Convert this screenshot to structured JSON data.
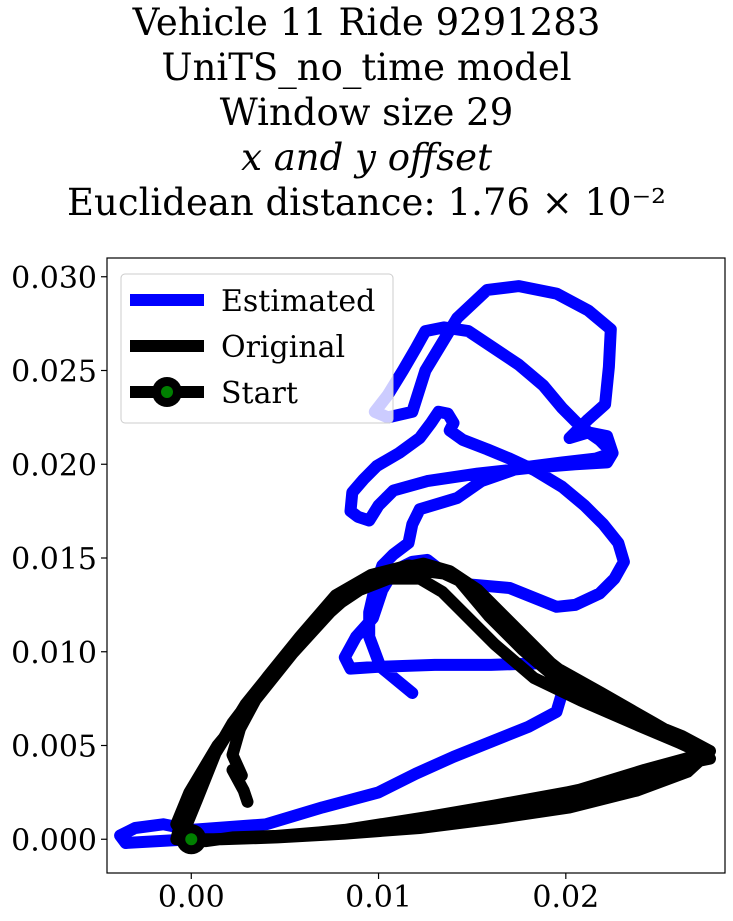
{
  "chart_data": {
    "type": "line",
    "title_lines": [
      "Vehicle 11 Ride 9291283",
      "UniTS_no_time model",
      "Window size 29",
      "x and y offset",
      "Euclidean distance: 1.76 × 10⁻²"
    ],
    "xlabel": "",
    "ylabel": "",
    "xlim": [
      -0.0045,
      0.0285
    ],
    "ylim": [
      -0.0018,
      0.031
    ],
    "xticks": [
      0.0,
      0.01,
      0.02
    ],
    "xtick_labels": [
      "0.00",
      "0.01",
      "0.02"
    ],
    "yticks": [
      0.0,
      0.005,
      0.01,
      0.015,
      0.02,
      0.025,
      0.03
    ],
    "ytick_labels": [
      "0.000",
      "0.005",
      "0.010",
      "0.015",
      "0.020",
      "0.025",
      "0.030"
    ],
    "grid": false,
    "legend": {
      "placement": "top-left",
      "entries": [
        "Estimated",
        "Original",
        "Start"
      ]
    },
    "series": [
      {
        "name": "Estimated",
        "color": "#0000ff",
        "points": [
          [
            0.0,
            0.0
          ],
          [
            -0.0035,
            -0.0002
          ],
          [
            -0.0038,
            0.0002
          ],
          [
            -0.003,
            0.0006
          ],
          [
            -0.0015,
            0.0008
          ],
          [
            0.0,
            0.0005
          ],
          [
            0.004,
            0.0008
          ],
          [
            0.007,
            0.0017
          ],
          [
            0.01,
            0.0025
          ],
          [
            0.012,
            0.0035
          ],
          [
            0.014,
            0.0044
          ],
          [
            0.016,
            0.0052
          ],
          [
            0.018,
            0.006
          ],
          [
            0.0195,
            0.0068
          ],
          [
            0.0198,
            0.0078
          ],
          [
            0.0197,
            0.0089
          ],
          [
            0.019,
            0.0094
          ],
          [
            0.016,
            0.0093
          ],
          [
            0.013,
            0.0093
          ],
          [
            0.01,
            0.0092
          ],
          [
            0.0085,
            0.0091
          ],
          [
            0.0082,
            0.0097
          ],
          [
            0.0088,
            0.0108
          ],
          [
            0.0097,
            0.0118
          ],
          [
            0.0102,
            0.0133
          ],
          [
            0.0108,
            0.0143
          ],
          [
            0.0118,
            0.0148
          ],
          [
            0.0126,
            0.0149
          ],
          [
            0.0135,
            0.0142
          ],
          [
            0.0148,
            0.0136
          ],
          [
            0.017,
            0.0134
          ],
          [
            0.0195,
            0.0124
          ],
          [
            0.0205,
            0.0125
          ],
          [
            0.0218,
            0.0131
          ],
          [
            0.0226,
            0.0139
          ],
          [
            0.0231,
            0.0148
          ],
          [
            0.0228,
            0.0158
          ],
          [
            0.022,
            0.0168
          ],
          [
            0.021,
            0.0178
          ],
          [
            0.0198,
            0.0188
          ],
          [
            0.0183,
            0.0197
          ],
          [
            0.017,
            0.0203
          ],
          [
            0.0158,
            0.0208
          ],
          [
            0.0145,
            0.0213
          ],
          [
            0.0138,
            0.0218
          ],
          [
            0.014,
            0.0222
          ],
          [
            0.0137,
            0.0227
          ],
          [
            0.0132,
            0.0228
          ],
          [
            0.0128,
            0.0222
          ],
          [
            0.0122,
            0.0214
          ],
          [
            0.0111,
            0.0206
          ],
          [
            0.0099,
            0.0199
          ],
          [
            0.0092,
            0.0192
          ],
          [
            0.0086,
            0.0185
          ],
          [
            0.0085,
            0.0175
          ],
          [
            0.0089,
            0.0172
          ],
          [
            0.0095,
            0.017
          ],
          [
            0.01,
            0.0178
          ],
          [
            0.0108,
            0.0186
          ],
          [
            0.0126,
            0.0191
          ],
          [
            0.0153,
            0.0195
          ],
          [
            0.018,
            0.0198
          ],
          [
            0.0205,
            0.02
          ],
          [
            0.0222,
            0.0201
          ],
          [
            0.0225,
            0.0206
          ],
          [
            0.0218,
            0.0213
          ],
          [
            0.0208,
            0.022
          ],
          [
            0.0198,
            0.023
          ],
          [
            0.0188,
            0.0242
          ],
          [
            0.0175,
            0.0253
          ],
          [
            0.016,
            0.0263
          ],
          [
            0.0148,
            0.0271
          ],
          [
            0.0135,
            0.0273
          ],
          [
            0.0125,
            0.0271
          ],
          [
            0.012,
            0.0262
          ],
          [
            0.0113,
            0.025
          ],
          [
            0.0105,
            0.0237
          ],
          [
            0.0098,
            0.0228
          ],
          [
            0.0105,
            0.0225
          ],
          [
            0.0118,
            0.0228
          ],
          [
            0.0125,
            0.025
          ],
          [
            0.0142,
            0.0278
          ],
          [
            0.0158,
            0.0293
          ],
          [
            0.0175,
            0.0295
          ],
          [
            0.0195,
            0.0291
          ],
          [
            0.0212,
            0.0282
          ],
          [
            0.0224,
            0.0272
          ],
          [
            0.0223,
            0.0252
          ],
          [
            0.0221,
            0.0232
          ],
          [
            0.0212,
            0.0224
          ],
          [
            0.0202,
            0.0214
          ],
          [
            0.0212,
            0.0217
          ],
          [
            0.0222,
            0.0215
          ],
          [
            0.0225,
            0.0206
          ],
          [
            0.0216,
            0.0203
          ],
          [
            0.0198,
            0.0201
          ],
          [
            0.0175,
            0.0198
          ],
          [
            0.0155,
            0.0191
          ],
          [
            0.0142,
            0.0182
          ],
          [
            0.0122,
            0.0176
          ],
          [
            0.0118,
            0.0168
          ],
          [
            0.0116,
            0.0158
          ],
          [
            0.0108,
            0.0152
          ],
          [
            0.0102,
            0.0146
          ],
          [
            0.0098,
            0.0134
          ],
          [
            0.0095,
            0.0121
          ],
          [
            0.0095,
            0.0108
          ],
          [
            0.0101,
            0.0092
          ],
          [
            0.0118,
            0.0078
          ]
        ]
      },
      {
        "name": "Original",
        "color": "#000000",
        "points": [
          [
            0.003,
            0.002
          ],
          [
            0.0028,
            0.0026
          ],
          [
            0.0022,
            0.0037
          ],
          [
            0.0027,
            0.0034
          ],
          [
            0.0022,
            0.0045
          ],
          [
            0.0026,
            0.0059
          ],
          [
            0.004,
            0.0085
          ],
          [
            0.0062,
            0.011
          ],
          [
            0.0084,
            0.0134
          ],
          [
            0.0103,
            0.0139
          ],
          [
            0.0122,
            0.0139
          ],
          [
            0.0134,
            0.0132
          ],
          [
            0.0143,
            0.0123
          ],
          [
            0.0162,
            0.0104
          ],
          [
            0.0183,
            0.0086
          ],
          [
            0.0208,
            0.0074
          ],
          [
            0.0238,
            0.0061
          ],
          [
            0.0264,
            0.005
          ],
          [
            0.0274,
            0.0046
          ],
          [
            0.0264,
            0.0043
          ],
          [
            0.0242,
            0.0037
          ],
          [
            0.0206,
            0.0026
          ],
          [
            0.0162,
            0.0018
          ],
          [
            0.0127,
            0.0012
          ],
          [
            0.0082,
            0.0005
          ],
          [
            0.0052,
            0.0002
          ],
          [
            0.0022,
            0.0001
          ],
          [
            0.0008,
            -0.0001
          ],
          [
            0.0001,
            -0.0001
          ],
          [
            -0.0008,
            0.0
          ],
          [
            -0.0004,
            0.0016
          ],
          [
            0.0008,
            0.0038
          ],
          [
            0.0022,
            0.0062
          ],
          [
            0.0041,
            0.0087
          ],
          [
            0.0058,
            0.0108
          ],
          [
            0.0077,
            0.013
          ],
          [
            0.0096,
            0.0141
          ],
          [
            0.0116,
            0.0146
          ],
          [
            0.013,
            0.0144
          ],
          [
            0.0143,
            0.0138
          ],
          [
            0.0159,
            0.0119
          ],
          [
            0.0177,
            0.0101
          ],
          [
            0.0196,
            0.0085
          ],
          [
            0.0218,
            0.0073
          ],
          [
            0.0242,
            0.006
          ],
          [
            0.0266,
            0.0049
          ],
          [
            0.0277,
            0.0043
          ],
          [
            0.0262,
            0.004
          ],
          [
            0.0229,
            0.0031
          ],
          [
            0.0196,
            0.0024
          ],
          [
            0.0162,
            0.0016
          ],
          [
            0.0122,
            0.001
          ],
          [
            0.0082,
            0.0004
          ],
          [
            0.0046,
            0.0001
          ],
          [
            0.0016,
            0.0
          ],
          [
            0.0001,
            0.0
          ],
          [
            -0.0004,
            0.0004
          ],
          [
            0.0003,
            0.0021
          ],
          [
            0.0013,
            0.0046
          ],
          [
            0.0029,
            0.0072
          ],
          [
            0.005,
            0.0098
          ],
          [
            0.0072,
            0.0121
          ],
          [
            0.009,
            0.0133
          ],
          [
            0.0108,
            0.014
          ],
          [
            0.0124,
            0.0143
          ],
          [
            0.0141,
            0.0141
          ],
          [
            0.0157,
            0.0128
          ],
          [
            0.0174,
            0.011
          ],
          [
            0.0194,
            0.0092
          ],
          [
            0.0219,
            0.0078
          ],
          [
            0.0247,
            0.0062
          ],
          [
            0.0266,
            0.0051
          ],
          [
            0.0276,
            0.0044
          ],
          [
            0.0262,
            0.0037
          ],
          [
            0.0232,
            0.0028
          ],
          [
            0.0196,
            0.0021
          ],
          [
            0.0162,
            0.0013
          ],
          [
            0.0115,
            0.0008
          ],
          [
            0.0072,
            0.0004
          ],
          [
            0.0036,
            0.0001
          ],
          [
            0.0012,
            0.0
          ],
          [
            -0.0002,
            0.0
          ],
          [
            -0.0008,
            0.0008
          ],
          [
            -0.0001,
            0.0025
          ],
          [
            0.0014,
            0.005
          ],
          [
            0.0034,
            0.0074
          ],
          [
            0.0054,
            0.0099
          ],
          [
            0.0074,
            0.0121
          ],
          [
            0.0092,
            0.0137
          ],
          [
            0.011,
            0.0144
          ],
          [
            0.0124,
            0.0147
          ],
          [
            0.0138,
            0.0143
          ],
          [
            0.0153,
            0.0133
          ],
          [
            0.0172,
            0.0114
          ],
          [
            0.0192,
            0.0094
          ],
          [
            0.0215,
            0.0076
          ],
          [
            0.0242,
            0.0063
          ],
          [
            0.0262,
            0.0055
          ],
          [
            0.0277,
            0.0047
          ],
          [
            0.0265,
            0.0036
          ],
          [
            0.0238,
            0.0026
          ],
          [
            0.0202,
            0.0017
          ],
          [
            0.0162,
            0.0011
          ],
          [
            0.0122,
            0.0006
          ],
          [
            0.0082,
            0.0003
          ],
          [
            0.0046,
            0.0001
          ],
          [
            0.0016,
            0.0
          ],
          [
            0.0001,
            0.0
          ],
          [
            0.0,
            0.0
          ]
        ]
      }
    ],
    "start_point": {
      "name": "Start",
      "x": 0.0,
      "y": 0.0,
      "outer_color": "#000000",
      "inner_color": "#008000"
    }
  }
}
